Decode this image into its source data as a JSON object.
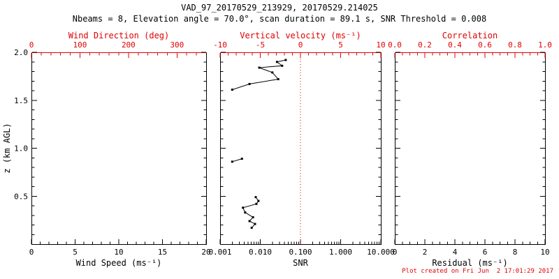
{
  "header": {
    "title": "VAD_97_20170529_213929, 20170529.214025",
    "subtitle": "Nbeams = 8, Elevation angle = 70.0°, scan duration = 89.1 s, SNR Threshold = 0.008"
  },
  "footer": {
    "created_note": "Plot created on Fri Jun  2 17:01:29 2017"
  },
  "colors": {
    "primary": "#000000",
    "accent_red": "#e00000",
    "background": "#ffffff"
  },
  "chart_data": [
    {
      "type": "line",
      "panel": "wind-speed",
      "xlabel": "Wind Speed (ms⁻¹)",
      "xscale": "linear",
      "xlim": [
        0,
        20
      ],
      "xticks": [
        0,
        5,
        10,
        15,
        20
      ],
      "xtick_labels": [
        "0",
        "5",
        "10",
        "15",
        "20"
      ],
      "top_xlabel": "Wind Direction (deg)",
      "top_xlim": [
        0,
        360
      ],
      "top_xticks": [
        0,
        100,
        200,
        300
      ],
      "top_xtick_labels": [
        "0",
        "100",
        "200",
        "300"
      ],
      "ylabel": "z (km AGL)",
      "ylim": [
        0,
        2.0
      ],
      "yticks": [
        0.5,
        1.0,
        1.5,
        2.0
      ],
      "ytick_labels": [
        "0.5",
        "1.0",
        "1.5",
        "2.0"
      ],
      "grid": false,
      "series": []
    },
    {
      "type": "line",
      "panel": "snr",
      "xlabel": "SNR",
      "xscale": "log",
      "xlim": [
        0.001,
        10
      ],
      "xticks": [
        0.001,
        0.01,
        0.1,
        1,
        10
      ],
      "xtick_labels": [
        "0.001",
        "0.010",
        "0.100",
        "1.000",
        "10.000"
      ],
      "top_xlabel": "Vertical velocity (ms⁻¹)",
      "top_xlim": [
        -10,
        10
      ],
      "top_xticks": [
        -10,
        -5,
        0,
        5,
        10
      ],
      "top_xtick_labels": [
        "-10",
        "-5",
        "0",
        "5",
        "10"
      ],
      "ylim": [
        0,
        2.0
      ],
      "grid": false,
      "ref_line": {
        "axis": "top",
        "value": 0,
        "style": "dotted",
        "color": "#e00000"
      },
      "series": [
        {
          "name": "snr-profile-upper",
          "points": [
            [
              0.002,
              1.61
            ],
            [
              0.0054,
              1.67
            ],
            [
              0.028,
              1.72
            ],
            [
              0.02,
              1.79
            ],
            [
              0.0094,
              1.84
            ],
            [
              0.035,
              1.86
            ],
            [
              0.026,
              1.9
            ],
            [
              0.043,
              1.92
            ]
          ]
        },
        {
          "name": "snr-profile-middle",
          "points": [
            [
              0.002,
              0.86
            ],
            [
              0.0035,
              0.89
            ]
          ]
        },
        {
          "name": "snr-profile-lower",
          "points": [
            [
              0.0061,
              0.17
            ],
            [
              0.0074,
              0.21
            ],
            [
              0.0054,
              0.24
            ],
            [
              0.0066,
              0.28
            ],
            [
              0.0042,
              0.33
            ],
            [
              0.0037,
              0.38
            ],
            [
              0.008,
              0.42
            ],
            [
              0.009,
              0.45
            ],
            [
              0.0077,
              0.49
            ]
          ]
        }
      ]
    },
    {
      "type": "line",
      "panel": "residual",
      "xlabel": "Residual (ms⁻¹)",
      "xscale": "linear",
      "xlim": [
        0,
        10
      ],
      "xticks": [
        0,
        2,
        4,
        6,
        8,
        10
      ],
      "xtick_labels": [
        "0",
        "2",
        "4",
        "6",
        "8",
        "10"
      ],
      "top_xlabel": "Correlation",
      "top_xlim": [
        0,
        1
      ],
      "top_xticks": [
        0,
        0.2,
        0.4,
        0.6,
        0.8,
        1
      ],
      "top_xtick_labels": [
        "0.0",
        "0.2",
        "0.4",
        "0.6",
        "0.8",
        "1.0"
      ],
      "ylim": [
        0,
        2.0
      ],
      "grid": false,
      "series": []
    }
  ]
}
